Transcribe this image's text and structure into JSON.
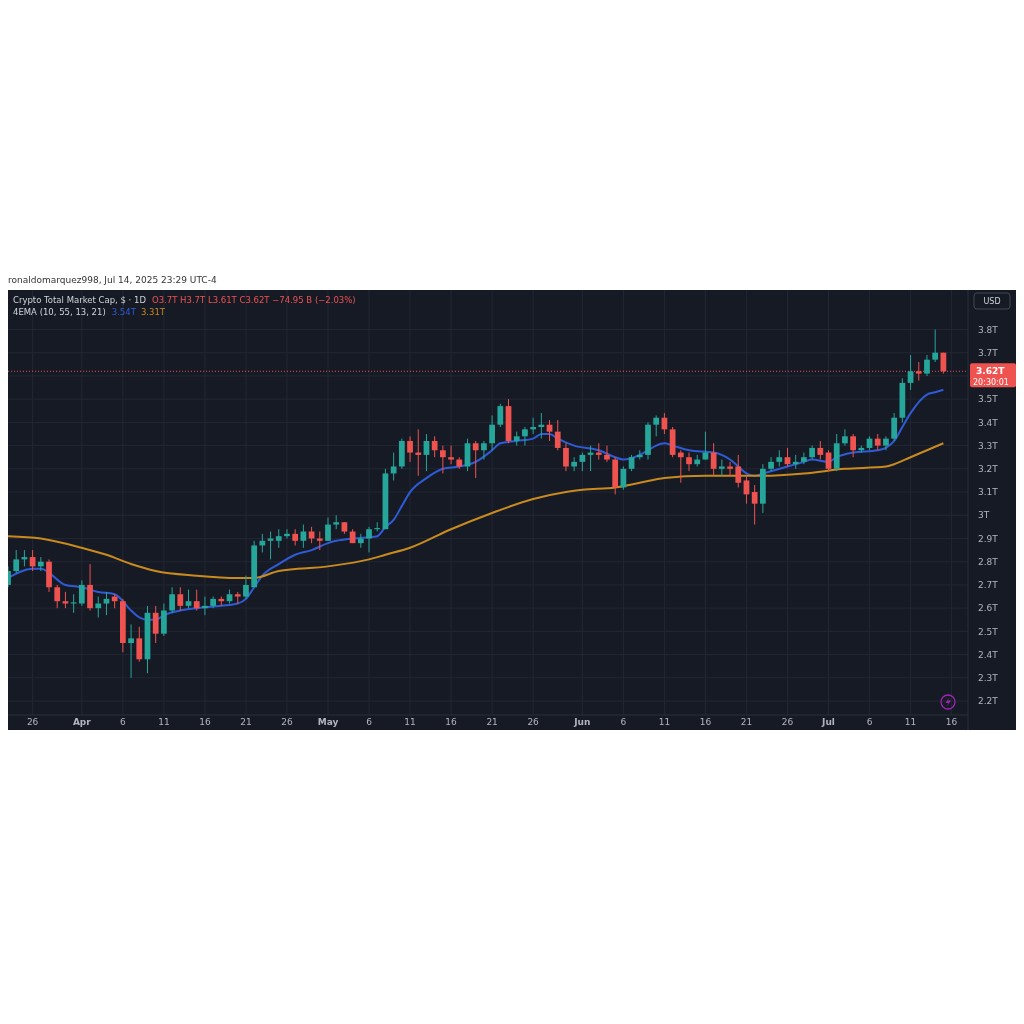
{
  "chart_data": {
    "type": "candlestick",
    "title": "Crypto Total Market Cap, $ · 1D",
    "annotations": [
      "ronaldomarquez998, Jul 14, 2025 23:29 UTC-4",
      "O3.7T  H3.7T  L3.61T  C3.62T  −74.95 B (−2.03%)",
      "4EMA (10, 55, 13, 21)",
      "3.54T",
      "3.31T",
      "20:30:01",
      "USD"
    ],
    "x": [
      "2025-03-23",
      "2025-03-24",
      "2025-03-25",
      "2025-03-26",
      "2025-03-27",
      "2025-03-28",
      "2025-03-29",
      "2025-03-30",
      "2025-03-31",
      "2025-04-01",
      "2025-04-02",
      "2025-04-03",
      "2025-04-04",
      "2025-04-05",
      "2025-04-06",
      "2025-04-07",
      "2025-04-08",
      "2025-04-09",
      "2025-04-10",
      "2025-04-11",
      "2025-04-12",
      "2025-04-13",
      "2025-04-14",
      "2025-04-15",
      "2025-04-16",
      "2025-04-17",
      "2025-04-18",
      "2025-04-19",
      "2025-04-20",
      "2025-04-21",
      "2025-04-22",
      "2025-04-23",
      "2025-04-24",
      "2025-04-25",
      "2025-04-26",
      "2025-04-27",
      "2025-04-28",
      "2025-04-29",
      "2025-04-30",
      "2025-05-01",
      "2025-05-02",
      "2025-05-03",
      "2025-05-04",
      "2025-05-05",
      "2025-05-06",
      "2025-05-07",
      "2025-05-08",
      "2025-05-09",
      "2025-05-10",
      "2025-05-11",
      "2025-05-12",
      "2025-05-13",
      "2025-05-14",
      "2025-05-15",
      "2025-05-16",
      "2025-05-17",
      "2025-05-18",
      "2025-05-19",
      "2025-05-20",
      "2025-05-21",
      "2025-05-22",
      "2025-05-23",
      "2025-05-24",
      "2025-05-25",
      "2025-05-26",
      "2025-05-27",
      "2025-05-28",
      "2025-05-29",
      "2025-05-30",
      "2025-05-31",
      "2025-06-01",
      "2025-06-02",
      "2025-06-03",
      "2025-06-04",
      "2025-06-05",
      "2025-06-06",
      "2025-06-07",
      "2025-06-08",
      "2025-06-09",
      "2025-06-10",
      "2025-06-11",
      "2025-06-12",
      "2025-06-13",
      "2025-06-14",
      "2025-06-15",
      "2025-06-16",
      "2025-06-17",
      "2025-06-18",
      "2025-06-19",
      "2025-06-20",
      "2025-06-21",
      "2025-06-22",
      "2025-06-23",
      "2025-06-24",
      "2025-06-25",
      "2025-06-26",
      "2025-06-27",
      "2025-06-28",
      "2025-06-29",
      "2025-06-30",
      "2025-07-01",
      "2025-07-02",
      "2025-07-03",
      "2025-07-04",
      "2025-07-05",
      "2025-07-06",
      "2025-07-07",
      "2025-07-08",
      "2025-07-09",
      "2025-07-10",
      "2025-07-11",
      "2025-07-12",
      "2025-07-13",
      "2025-07-14",
      "2025-07-15"
    ],
    "ohlc": [
      [
        2.7,
        2.78,
        2.69,
        2.76
      ],
      [
        2.76,
        2.85,
        2.75,
        2.81
      ],
      [
        2.81,
        2.85,
        2.78,
        2.82
      ],
      [
        2.82,
        2.85,
        2.76,
        2.78
      ],
      [
        2.78,
        2.82,
        2.76,
        2.8
      ],
      [
        2.8,
        2.81,
        2.67,
        2.69
      ],
      [
        2.69,
        2.7,
        2.6,
        2.63
      ],
      [
        2.63,
        2.67,
        2.6,
        2.62
      ],
      [
        2.62,
        2.66,
        2.58,
        2.625
      ],
      [
        2.62,
        2.72,
        2.61,
        2.7
      ],
      [
        2.7,
        2.79,
        2.59,
        2.6
      ],
      [
        2.6,
        2.65,
        2.56,
        2.62
      ],
      [
        2.62,
        2.67,
        2.57,
        2.64
      ],
      [
        2.65,
        2.66,
        2.6,
        2.63
      ],
      [
        2.63,
        2.64,
        2.41,
        2.45
      ],
      [
        2.45,
        2.53,
        2.3,
        2.47
      ],
      [
        2.47,
        2.52,
        2.37,
        2.38
      ],
      [
        2.38,
        2.61,
        2.32,
        2.58
      ],
      [
        2.58,
        2.61,
        2.45,
        2.49
      ],
      [
        2.49,
        2.62,
        2.48,
        2.59
      ],
      [
        2.59,
        2.69,
        2.58,
        2.66
      ],
      [
        2.66,
        2.69,
        2.59,
        2.61
      ],
      [
        2.61,
        2.68,
        2.6,
        2.63
      ],
      [
        2.63,
        2.68,
        2.59,
        2.6
      ],
      [
        2.6,
        2.65,
        2.57,
        2.61
      ],
      [
        2.61,
        2.65,
        2.6,
        2.64
      ],
      [
        2.64,
        2.65,
        2.61,
        2.63
      ],
      [
        2.63,
        2.68,
        2.62,
        2.66
      ],
      [
        2.66,
        2.67,
        2.62,
        2.65
      ],
      [
        2.65,
        2.74,
        2.64,
        2.7
      ],
      [
        2.69,
        2.89,
        2.69,
        2.87
      ],
      [
        2.87,
        2.92,
        2.84,
        2.89
      ],
      [
        2.89,
        2.93,
        2.81,
        2.9
      ],
      [
        2.89,
        2.94,
        2.86,
        2.91
      ],
      [
        2.91,
        2.94,
        2.9,
        2.92
      ],
      [
        2.92,
        2.94,
        2.87,
        2.89
      ],
      [
        2.89,
        2.96,
        2.86,
        2.93
      ],
      [
        2.93,
        2.95,
        2.88,
        2.9
      ],
      [
        2.9,
        2.93,
        2.85,
        2.89
      ],
      [
        2.89,
        2.99,
        2.89,
        2.96
      ],
      [
        2.96,
        3.0,
        2.94,
        2.97
      ],
      [
        2.97,
        2.97,
        2.92,
        2.93
      ],
      [
        2.93,
        2.94,
        2.88,
        2.88
      ],
      [
        2.88,
        2.92,
        2.86,
        2.9
      ],
      [
        2.9,
        2.95,
        2.84,
        2.94
      ],
      [
        2.94,
        2.97,
        2.93,
        2.945
      ],
      [
        2.94,
        3.2,
        2.94,
        3.18
      ],
      [
        3.18,
        3.27,
        3.15,
        3.21
      ],
      [
        3.21,
        3.33,
        3.2,
        3.32
      ],
      [
        3.32,
        3.34,
        3.23,
        3.27
      ],
      [
        3.27,
        3.37,
        3.17,
        3.26
      ],
      [
        3.26,
        3.35,
        3.19,
        3.32
      ],
      [
        3.32,
        3.34,
        3.25,
        3.28
      ],
      [
        3.28,
        3.3,
        3.18,
        3.25
      ],
      [
        3.25,
        3.3,
        3.22,
        3.24
      ],
      [
        3.24,
        3.25,
        3.2,
        3.21
      ],
      [
        3.21,
        3.33,
        3.19,
        3.31
      ],
      [
        3.31,
        3.32,
        3.16,
        3.28
      ],
      [
        3.28,
        3.32,
        3.24,
        3.31
      ],
      [
        3.31,
        3.43,
        3.28,
        3.39
      ],
      [
        3.39,
        3.48,
        3.38,
        3.47
      ],
      [
        3.47,
        3.5,
        3.31,
        3.32
      ],
      [
        3.32,
        3.36,
        3.3,
        3.34
      ],
      [
        3.34,
        3.38,
        3.3,
        3.37
      ],
      [
        3.37,
        3.42,
        3.35,
        3.38
      ],
      [
        3.38,
        3.44,
        3.33,
        3.39
      ],
      [
        3.39,
        3.41,
        3.32,
        3.36
      ],
      [
        3.36,
        3.41,
        3.28,
        3.29
      ],
      [
        3.29,
        3.31,
        3.19,
        3.21
      ],
      [
        3.21,
        3.25,
        3.19,
        3.23
      ],
      [
        3.23,
        3.27,
        3.19,
        3.26
      ],
      [
        3.26,
        3.3,
        3.19,
        3.27
      ],
      [
        3.27,
        3.31,
        3.24,
        3.26
      ],
      [
        3.26,
        3.3,
        3.23,
        3.24
      ],
      [
        3.24,
        3.25,
        3.09,
        3.12
      ],
      [
        3.12,
        3.21,
        3.11,
        3.2
      ],
      [
        3.2,
        3.26,
        3.19,
        3.25
      ],
      [
        3.25,
        3.28,
        3.24,
        3.26
      ],
      [
        3.26,
        3.4,
        3.24,
        3.39
      ],
      [
        3.39,
        3.43,
        3.34,
        3.42
      ],
      [
        3.42,
        3.44,
        3.35,
        3.37
      ],
      [
        3.37,
        3.38,
        3.25,
        3.26
      ],
      [
        3.27,
        3.28,
        3.14,
        3.25
      ],
      [
        3.25,
        3.27,
        3.19,
        3.22
      ],
      [
        3.22,
        3.26,
        3.21,
        3.24
      ],
      [
        3.24,
        3.36,
        3.24,
        3.27
      ],
      [
        3.27,
        3.31,
        3.17,
        3.2
      ],
      [
        3.2,
        3.24,
        3.17,
        3.21
      ],
      [
        3.21,
        3.23,
        3.17,
        3.2
      ],
      [
        3.21,
        3.26,
        3.12,
        3.14
      ],
      [
        3.15,
        3.17,
        3.05,
        3.09
      ],
      [
        3.1,
        3.13,
        2.96,
        3.05
      ],
      [
        3.05,
        3.22,
        3.01,
        3.2
      ],
      [
        3.2,
        3.25,
        3.19,
        3.23
      ],
      [
        3.23,
        3.28,
        3.21,
        3.25
      ],
      [
        3.25,
        3.29,
        3.21,
        3.22
      ],
      [
        3.22,
        3.26,
        3.2,
        3.23
      ],
      [
        3.23,
        3.27,
        3.22,
        3.25
      ],
      [
        3.25,
        3.3,
        3.24,
        3.29
      ],
      [
        3.29,
        3.32,
        3.24,
        3.26
      ],
      [
        3.27,
        3.28,
        3.19,
        3.2
      ],
      [
        3.2,
        3.35,
        3.19,
        3.31
      ],
      [
        3.31,
        3.37,
        3.3,
        3.34
      ],
      [
        3.34,
        3.35,
        3.25,
        3.28
      ],
      [
        3.28,
        3.3,
        3.27,
        3.29
      ],
      [
        3.29,
        3.34,
        3.28,
        3.33
      ],
      [
        3.33,
        3.35,
        3.28,
        3.3
      ],
      [
        3.3,
        3.34,
        3.28,
        3.33
      ],
      [
        3.33,
        3.44,
        3.32,
        3.42
      ],
      [
        3.42,
        3.59,
        3.4,
        3.57
      ],
      [
        3.57,
        3.69,
        3.54,
        3.62
      ],
      [
        3.62,
        3.66,
        3.58,
        3.61
      ],
      [
        3.61,
        3.69,
        3.6,
        3.67
      ],
      [
        3.67,
        3.8,
        3.66,
        3.7
      ],
      [
        3.7,
        3.7,
        3.61,
        3.62
      ]
    ],
    "colors": [
      "#26a69a",
      "#26a69a",
      "#26a69a",
      "#ef5350",
      "#26a69a",
      "#ef5350",
      "#ef5350",
      "#ef5350",
      "#26a69a",
      "#26a69a",
      "#ef5350",
      "#26a69a",
      "#26a69a",
      "#ef5350",
      "#ef5350",
      "#26a69a",
      "#ef5350",
      "#26a69a",
      "#ef5350",
      "#26a69a",
      "#26a69a",
      "#ef5350",
      "#26a69a",
      "#ef5350",
      "#26a69a",
      "#26a69a",
      "#ef5350",
      "#26a69a",
      "#ef5350",
      "#26a69a",
      "#26a69a",
      "#26a69a",
      "#26a69a",
      "#26a69a",
      "#26a69a",
      "#ef5350",
      "#26a69a",
      "#ef5350",
      "#ef5350",
      "#26a69a",
      "#26a69a",
      "#ef5350",
      "#ef5350",
      "#26a69a",
      "#26a69a",
      "#26a69a",
      "#26a69a",
      "#26a69a",
      "#26a69a",
      "#ef5350",
      "#ef5350",
      "#26a69a",
      "#ef5350",
      "#ef5350",
      "#ef5350",
      "#ef5350",
      "#26a69a",
      "#ef5350",
      "#26a69a",
      "#26a69a",
      "#26a69a",
      "#ef5350",
      "#26a69a",
      "#26a69a",
      "#26a69a",
      "#26a69a",
      "#ef5350",
      "#ef5350",
      "#ef5350",
      "#26a69a",
      "#26a69a",
      "#26a69a",
      "#ef5350",
      "#ef5350",
      "#ef5350",
      "#26a69a",
      "#26a69a",
      "#26a69a",
      "#26a69a",
      "#26a69a",
      "#ef5350",
      "#ef5350",
      "#ef5350",
      "#ef5350",
      "#26a69a",
      "#26a69a",
      "#ef5350",
      "#26a69a",
      "#ef5350",
      "#ef5350",
      "#ef5350",
      "#ef5350",
      "#26a69a",
      "#26a69a",
      "#26a69a",
      "#ef5350",
      "#26a69a",
      "#26a69a",
      "#26a69a",
      "#ef5350",
      "#ef5350",
      "#26a69a",
      "#26a69a",
      "#ef5350",
      "#26a69a",
      "#26a69a",
      "#ef5350",
      "#26a69a",
      "#26a69a",
      "#26a69a",
      "#26a69a",
      "#ef5350",
      "#26a69a",
      "#26a69a",
      "#ef5350"
    ],
    "series": [
      {
        "type": "line",
        "color": "#2f5bd6",
        "x": [
          "2025-03-23",
          "2025-03-26",
          "2025-03-27",
          "2025-03-30",
          "2025-04-01",
          "2025-04-03",
          "2025-04-05",
          "2025-04-07",
          "2025-04-08",
          "2025-04-09",
          "2025-04-10",
          "2025-04-11",
          "2025-04-13",
          "2025-04-15",
          "2025-04-18",
          "2025-04-20",
          "2025-04-21",
          "2025-04-22",
          "2025-04-23",
          "2025-04-25",
          "2025-04-27",
          "2025-04-29",
          "2025-05-01",
          "2025-05-02",
          "2025-05-04",
          "2025-05-07",
          "2025-05-08",
          "2025-05-09",
          "2025-05-10",
          "2025-05-11",
          "2025-05-13",
          "2025-05-15",
          "2025-05-17",
          "2025-05-19",
          "2025-05-21",
          "2025-05-22",
          "2025-05-24",
          "2025-05-26",
          "2025-05-27",
          "2025-05-28",
          "2025-05-29",
          "2025-05-31",
          "2025-06-03",
          "2025-06-05",
          "2025-06-06",
          "2025-06-08",
          "2025-06-09",
          "2025-06-10",
          "2025-06-11",
          "2025-06-12",
          "2025-06-14",
          "2025-06-17",
          "2025-06-19",
          "2025-06-20",
          "2025-06-21",
          "2025-06-22",
          "2025-06-23",
          "2025-06-26",
          "2025-06-28",
          "2025-06-29",
          "2025-07-01",
          "2025-07-02",
          "2025-07-04",
          "2025-07-07",
          "2025-07-08",
          "2025-07-09",
          "2025-07-10",
          "2025-07-11",
          "2025-07-13",
          "2025-07-14",
          "2025-07-15"
        ],
        "values": [
          2.73,
          2.77,
          2.77,
          2.7,
          2.69,
          2.67,
          2.66,
          2.59,
          2.56,
          2.55,
          2.55,
          2.57,
          2.59,
          2.6,
          2.61,
          2.62,
          2.64,
          2.69,
          2.74,
          2.79,
          2.83,
          2.85,
          2.88,
          2.89,
          2.9,
          2.91,
          2.95,
          2.98,
          3.04,
          3.1,
          3.16,
          3.2,
          3.21,
          3.23,
          3.28,
          3.31,
          3.32,
          3.33,
          3.35,
          3.35,
          3.33,
          3.3,
          3.28,
          3.25,
          3.24,
          3.26,
          3.28,
          3.3,
          3.31,
          3.3,
          3.28,
          3.27,
          3.24,
          3.21,
          3.18,
          3.17,
          3.18,
          3.21,
          3.23,
          3.24,
          3.23,
          3.25,
          3.27,
          3.28,
          3.29,
          3.32,
          3.38,
          3.44,
          3.52,
          3.53,
          3.54
        ]
      },
      {
        "type": "line",
        "color": "#c98a1f",
        "x": [
          "2025-03-23",
          "2025-03-27",
          "2025-04-01",
          "2025-04-04",
          "2025-04-07",
          "2025-04-10",
          "2025-04-15",
          "2025-04-20",
          "2025-04-22",
          "2025-04-25",
          "2025-05-01",
          "2025-05-06",
          "2025-05-08",
          "2025-05-11",
          "2025-05-16",
          "2025-05-21",
          "2025-05-26",
          "2025-05-30",
          "2025-06-01",
          "2025-06-05",
          "2025-06-08",
          "2025-06-11",
          "2025-06-16",
          "2025-06-21",
          "2025-06-23",
          "2025-06-28",
          "2025-07-03",
          "2025-07-08",
          "2025-07-09",
          "2025-07-11",
          "2025-07-13",
          "2025-07-15"
        ],
        "values": [
          2.91,
          2.9,
          2.86,
          2.83,
          2.79,
          2.76,
          2.74,
          2.73,
          2.73,
          2.76,
          2.78,
          2.81,
          2.83,
          2.86,
          2.94,
          3.01,
          3.07,
          3.1,
          3.11,
          3.12,
          3.14,
          3.16,
          3.17,
          3.17,
          3.17,
          3.18,
          3.2,
          3.21,
          3.22,
          3.25,
          3.28,
          3.31
        ]
      }
    ],
    "xlim": [
      "2025-03-23",
      "2025-07-18"
    ],
    "xticks": [
      {
        "value": "2025-03-26",
        "label": "26"
      },
      {
        "value": "2025-04-01",
        "label": "Apr"
      },
      {
        "value": "2025-04-06",
        "label": "6"
      },
      {
        "value": "2025-04-11",
        "label": "11"
      },
      {
        "value": "2025-04-16",
        "label": "16"
      },
      {
        "value": "2025-04-21",
        "label": "21"
      },
      {
        "value": "2025-04-26",
        "label": "26"
      },
      {
        "value": "2025-05-01",
        "label": "May"
      },
      {
        "value": "2025-05-06",
        "label": "6"
      },
      {
        "value": "2025-05-11",
        "label": "11"
      },
      {
        "value": "2025-05-16",
        "label": "16"
      },
      {
        "value": "2025-05-21",
        "label": "21"
      },
      {
        "value": "2025-05-26",
        "label": "26"
      },
      {
        "value": "2025-06-01",
        "label": "Jun"
      },
      {
        "value": "2025-06-06",
        "label": "6"
      },
      {
        "value": "2025-06-11",
        "label": "11"
      },
      {
        "value": "2025-06-16",
        "label": "16"
      },
      {
        "value": "2025-06-21",
        "label": "21"
      },
      {
        "value": "2025-06-26",
        "label": "26"
      },
      {
        "value": "2025-07-01",
        "label": "Jul"
      },
      {
        "value": "2025-07-06",
        "label": "6"
      },
      {
        "value": "2025-07-11",
        "label": "11"
      },
      {
        "value": "2025-07-16",
        "label": "16"
      }
    ],
    "ylim": [
      2.14,
      3.97
    ],
    "yticks": [
      {
        "value": 2.2,
        "label": "2.2T"
      },
      {
        "value": 2.3,
        "label": "2.3T"
      },
      {
        "value": 2.4,
        "label": "2.4T"
      },
      {
        "value": 2.5,
        "label": "2.5T"
      },
      {
        "value": 2.6,
        "label": "2.6T"
      },
      {
        "value": 2.7,
        "label": "2.7T"
      },
      {
        "value": 2.8,
        "label": "2.8T"
      },
      {
        "value": 2.9,
        "label": "2.9T"
      },
      {
        "value": 3.0,
        "label": "3T"
      },
      {
        "value": 3.1,
        "label": "3.1T"
      },
      {
        "value": 3.2,
        "label": "3.2T"
      },
      {
        "value": 3.3,
        "label": "3.3T"
      },
      {
        "value": 3.4,
        "label": "3.4T"
      },
      {
        "value": 3.5,
        "label": "3.5T"
      },
      {
        "value": 3.6,
        "label": null
      },
      {
        "value": 3.7,
        "label": "3.7T"
      },
      {
        "value": 3.8,
        "label": "3.8T"
      }
    ],
    "ref_lines": [
      {
        "axis": "y",
        "value": 3.62,
        "label": "3.62T",
        "color": "#ef5350",
        "line_style": "dotted"
      }
    ],
    "grid": true
  }
}
